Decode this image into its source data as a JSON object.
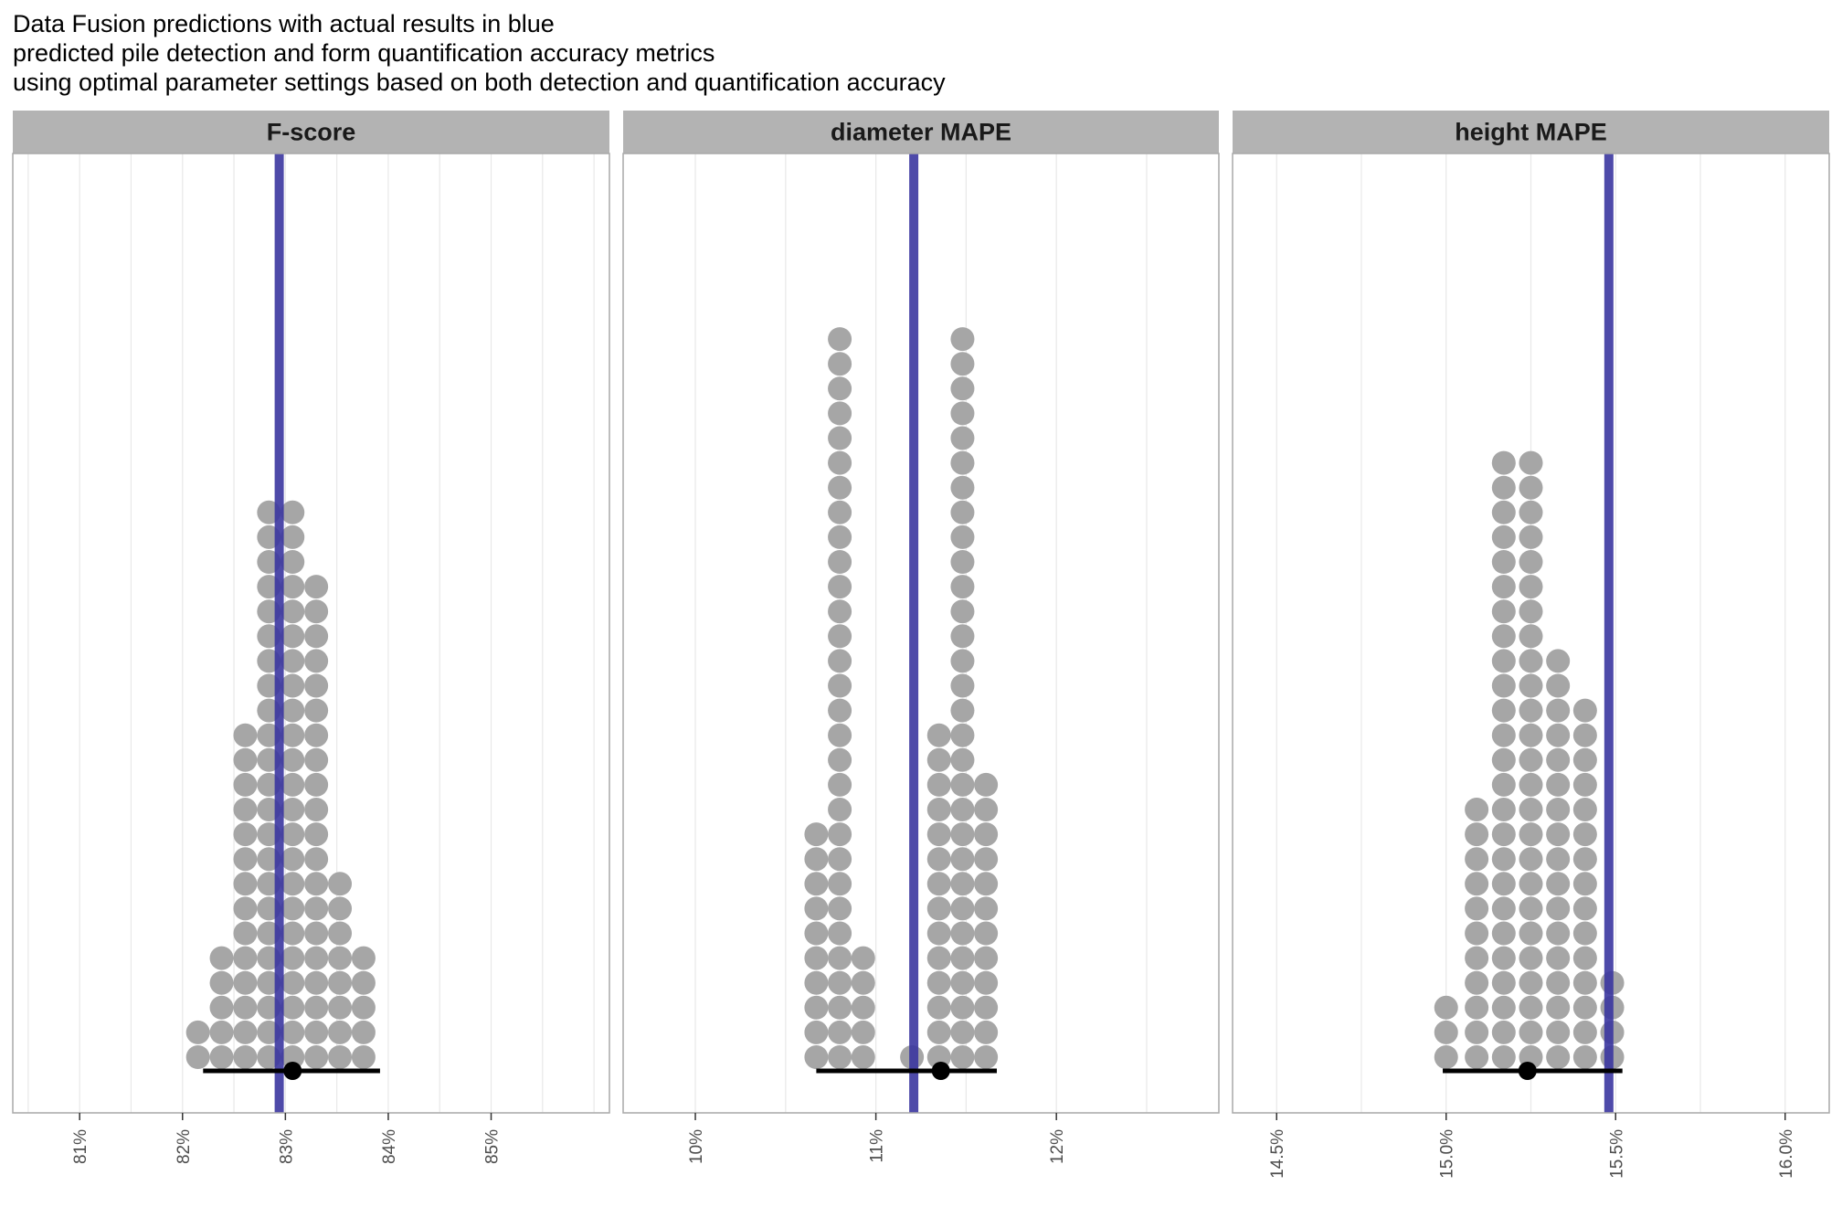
{
  "title_lines": [
    "Data Fusion predictions with actual results in blue",
    "predicted pile detection and form quantification accuracy metrics",
    "using optimal parameter settings based on both detection and quantification accuracy"
  ],
  "colors": {
    "dot": "#a6a6a6",
    "actual_line": "#3b36a0",
    "interval": "#000000",
    "strip": "#b3b3b3",
    "panel_border": "#a9a9a9",
    "grid": "#e8e8e8"
  },
  "chart_data": [
    {
      "type": "dotplot",
      "facet": "F-score",
      "xlim": [
        80.35,
        86.15
      ],
      "ticks": [
        81,
        82,
        83,
        84,
        85
      ],
      "tick_labels": [
        "81%",
        "82%",
        "83%",
        "84%",
        "85%"
      ],
      "actual": 82.94,
      "point_estimate": 83.07,
      "interval": [
        82.2,
        83.92
      ],
      "dot_columns": [
        {
          "x": 82.15,
          "count": 2
        },
        {
          "x": 82.38,
          "count": 5
        },
        {
          "x": 82.61,
          "count": 14
        },
        {
          "x": 82.84,
          "count": 23
        },
        {
          "x": 83.07,
          "count": 23
        },
        {
          "x": 83.3,
          "count": 20
        },
        {
          "x": 83.53,
          "count": 8
        },
        {
          "x": 83.76,
          "count": 5
        }
      ]
    },
    {
      "type": "dotplot",
      "facet": "diameter MAPE",
      "xlim": [
        9.6,
        12.9
      ],
      "ticks": [
        10,
        11,
        12
      ],
      "tick_labels": [
        "10%",
        "11%",
        "12%"
      ],
      "actual": 11.21,
      "point_estimate": 11.36,
      "interval": [
        10.67,
        11.67
      ],
      "dot_columns": [
        {
          "x": 10.67,
          "count": 10
        },
        {
          "x": 10.8,
          "count": 30
        },
        {
          "x": 10.93,
          "count": 5
        },
        {
          "x": 11.2,
          "count": 1
        },
        {
          "x": 11.35,
          "count": 14
        },
        {
          "x": 11.48,
          "count": 30
        },
        {
          "x": 11.61,
          "count": 12
        }
      ]
    },
    {
      "type": "dotplot",
      "facet": "height MAPE",
      "xlim": [
        14.37,
        16.13
      ],
      "ticks": [
        14.5,
        15.0,
        15.5,
        16.0
      ],
      "tick_labels": [
        "14.5%",
        "15.0%",
        "15.5%",
        "16.0%"
      ],
      "actual": 15.48,
      "point_estimate": 15.24,
      "interval": [
        14.99,
        15.52
      ],
      "dot_columns": [
        {
          "x": 15.0,
          "count": 3
        },
        {
          "x": 15.09,
          "count": 11
        },
        {
          "x": 15.17,
          "count": 25
        },
        {
          "x": 15.25,
          "count": 25
        },
        {
          "x": 15.33,
          "count": 17
        },
        {
          "x": 15.41,
          "count": 15
        },
        {
          "x": 15.49,
          "count": 4
        }
      ]
    }
  ]
}
